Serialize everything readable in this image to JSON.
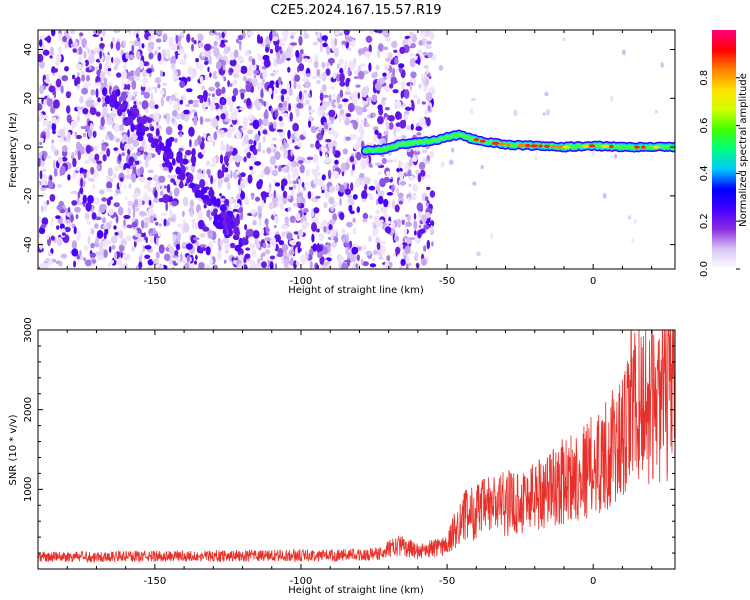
{
  "title": "C2E5.2024.167.15.57.R19",
  "chart_data": [
    {
      "type": "heatmap",
      "xlabel": "Height of straight line (km)",
      "ylabel": "Frequency (Hz)",
      "xlim": [
        -190,
        28
      ],
      "ylim": [
        -50,
        48
      ],
      "x_ticks": [
        -150,
        -100,
        -50,
        0
      ],
      "y_ticks": [
        -40,
        -20,
        0,
        20,
        40
      ],
      "noise_region_x": [
        -190,
        -55
      ],
      "signal_line": [
        {
          "x": -78,
          "y": -1.5
        },
        {
          "x": -72,
          "y": -1
        },
        {
          "x": -66,
          "y": 1
        },
        {
          "x": -60,
          "y": 2
        },
        {
          "x": -55,
          "y": 2.5
        },
        {
          "x": -50,
          "y": 4
        },
        {
          "x": -46,
          "y": 5
        },
        {
          "x": -42,
          "y": 3.5
        },
        {
          "x": -36,
          "y": 2
        },
        {
          "x": -30,
          "y": 1
        },
        {
          "x": -20,
          "y": 0.5
        },
        {
          "x": -10,
          "y": 0
        },
        {
          "x": 0,
          "y": 0.5
        },
        {
          "x": 10,
          "y": 0
        },
        {
          "x": 20,
          "y": 0
        },
        {
          "x": 28,
          "y": 0
        }
      ],
      "colorbar": {
        "label": "Normalized spectral amplitude",
        "range": [
          0,
          1
        ],
        "ticks": [
          "0.0",
          "0.2",
          "0.4",
          "0.6",
          "0.8"
        ],
        "colors": [
          "#ffffff",
          "#d9c4f5",
          "#8b2be2",
          "#4400ff",
          "#0000ff",
          "#00c8ff",
          "#00ff80",
          "#40ff00",
          "#d0ff00",
          "#ffe000",
          "#ff8000",
          "#ff0000",
          "#ff0080"
        ]
      }
    },
    {
      "type": "line",
      "xlabel": "Height of straight line (km)",
      "ylabel": "SNR (10 * v/v)",
      "xlim": [
        -190,
        28
      ],
      "ylim": [
        0,
        3000
      ],
      "x_ticks": [
        -150,
        -100,
        -50,
        0
      ],
      "y_ticks": [
        1000,
        2000,
        3000
      ],
      "series": [
        {
          "color": "#e8302a",
          "trend": [
            {
              "x": -190,
              "y": 150
            },
            {
              "x": -150,
              "y": 160
            },
            {
              "x": -100,
              "y": 170
            },
            {
              "x": -75,
              "y": 180
            },
            {
              "x": -66,
              "y": 300
            },
            {
              "x": -60,
              "y": 220
            },
            {
              "x": -50,
              "y": 300
            },
            {
              "x": -45,
              "y": 650
            },
            {
              "x": -35,
              "y": 800
            },
            {
              "x": -25,
              "y": 850
            },
            {
              "x": -10,
              "y": 1100
            },
            {
              "x": 0,
              "y": 1300
            },
            {
              "x": 10,
              "y": 1600
            },
            {
              "x": 15,
              "y": 2100
            },
            {
              "x": 28,
              "y": 2150
            }
          ],
          "peak": {
            "x": 13,
            "y": 3000
          }
        }
      ]
    }
  ]
}
